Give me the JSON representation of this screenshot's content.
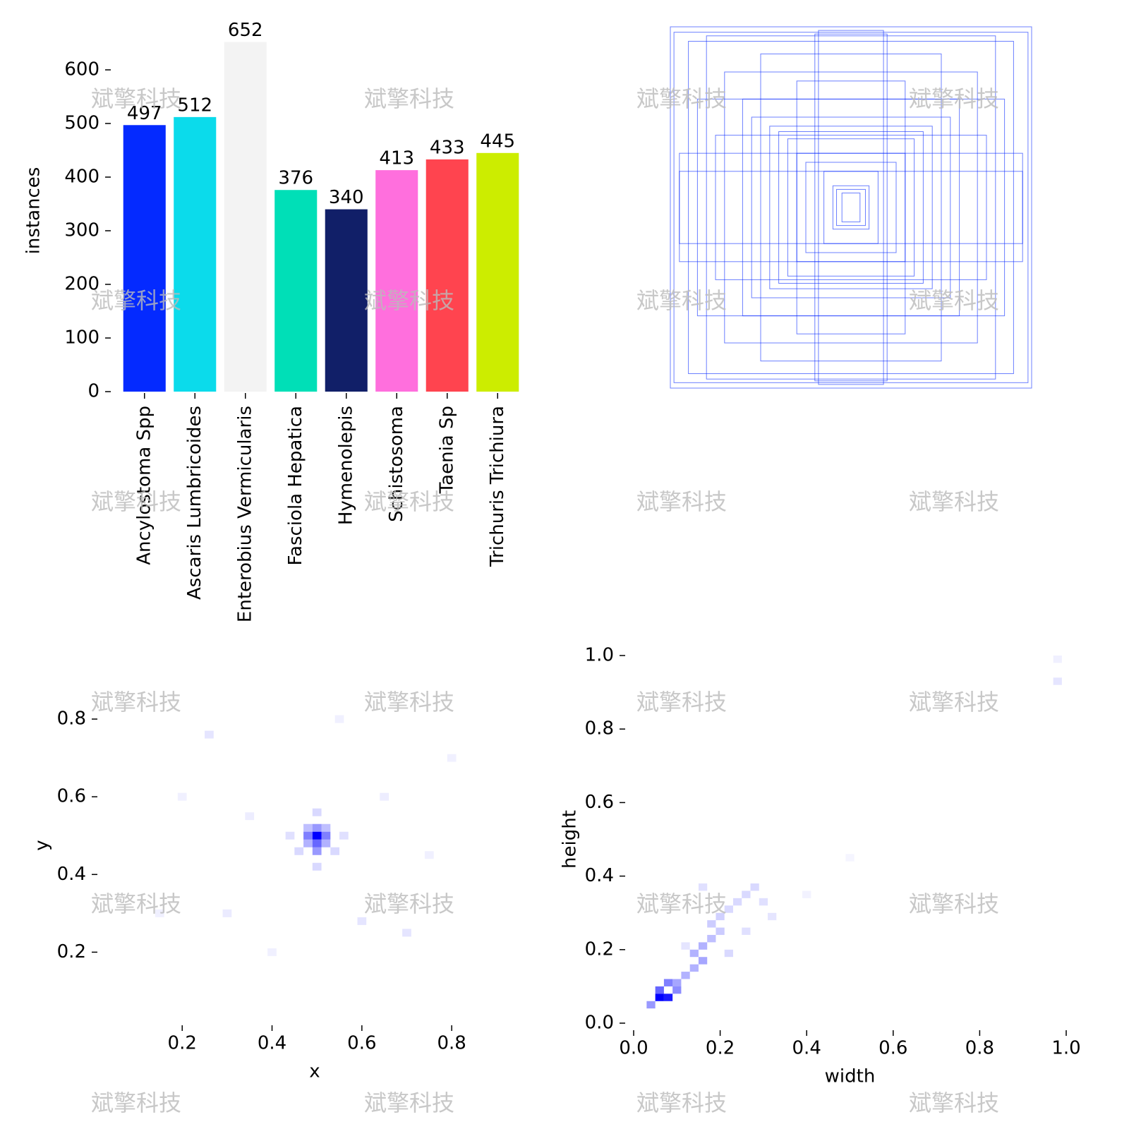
{
  "watermark": "斌擎科技",
  "chart_data": [
    {
      "type": "bar",
      "ylabel": "instances",
      "categories": [
        "Ancylostoma Spp",
        "Ascaris Lumbricoides",
        "Enterobius Vermicularis",
        "Fasciola Hepatica",
        "Hymenolepis",
        "Schistosoma",
        "Taenia Sp",
        "Trichuris Trichiura"
      ],
      "values": [
        497,
        512,
        652,
        376,
        340,
        413,
        433,
        445
      ],
      "colors": [
        "#042aff",
        "#0bdbeb",
        "#f3f3f3",
        "#00dfb7",
        "#111f68",
        "#ff6fdd",
        "#ff444f",
        "#cced00"
      ],
      "ylim": [
        0,
        675
      ],
      "yticks": [
        0,
        100,
        200,
        300,
        400,
        500,
        600
      ]
    },
    {
      "type": "boxes",
      "color": "#0a2cff",
      "boxes": [
        [
          1,
          1
        ],
        [
          0.98,
          0.97
        ],
        [
          0.9,
          0.92
        ],
        [
          0.8,
          0.95
        ],
        [
          0.2,
          0.96
        ],
        [
          0.18,
          0.98
        ],
        [
          0.95,
          0.2
        ],
        [
          0.95,
          0.3
        ],
        [
          0.6,
          0.6
        ],
        [
          0.45,
          0.45
        ],
        [
          0.4,
          0.42
        ],
        [
          0.35,
          0.38
        ],
        [
          0.3,
          0.3
        ],
        [
          0.25,
          0.25
        ],
        [
          0.15,
          0.2
        ],
        [
          0.1,
          0.12
        ],
        [
          0.08,
          0.1
        ],
        [
          0.05,
          0.08
        ],
        [
          0.7,
          0.75
        ],
        [
          0.55,
          0.5
        ],
        [
          0.85,
          0.6
        ],
        [
          0.5,
          0.85
        ],
        [
          0.75,
          0.4
        ],
        [
          0.3,
          0.7
        ]
      ]
    },
    {
      "type": "heatmap",
      "xlabel": "x",
      "ylabel": "y",
      "color": "#0000ff",
      "bin": 0.02,
      "xlim": [
        0.03,
        0.96
      ],
      "ylim": [
        0.03,
        0.92
      ],
      "xticks": [
        0.2,
        0.4,
        0.6,
        0.8
      ],
      "yticks": [
        0.2,
        0.4,
        0.6,
        0.8
      ],
      "cells": [
        [
          0.5,
          0.5,
          1
        ],
        [
          0.48,
          0.5,
          0.5
        ],
        [
          0.52,
          0.5,
          0.5
        ],
        [
          0.5,
          0.48,
          0.6
        ],
        [
          0.5,
          0.46,
          0.4
        ],
        [
          0.5,
          0.52,
          0.4
        ],
        [
          0.48,
          0.48,
          0.3
        ],
        [
          0.52,
          0.48,
          0.3
        ],
        [
          0.48,
          0.52,
          0.25
        ],
        [
          0.52,
          0.52,
          0.25
        ],
        [
          0.46,
          0.46,
          0.15
        ],
        [
          0.54,
          0.46,
          0.15
        ],
        [
          0.5,
          0.56,
          0.15
        ],
        [
          0.44,
          0.5,
          0.12
        ],
        [
          0.56,
          0.5,
          0.12
        ],
        [
          0.5,
          0.42,
          0.15
        ],
        [
          0.26,
          0.76,
          0.1
        ],
        [
          0.3,
          0.3,
          0.08
        ],
        [
          0.7,
          0.25,
          0.1
        ],
        [
          0.6,
          0.28,
          0.1
        ],
        [
          0.2,
          0.6,
          0.06
        ],
        [
          0.8,
          0.7,
          0.06
        ],
        [
          0.35,
          0.55,
          0.07
        ],
        [
          0.65,
          0.6,
          0.07
        ],
        [
          0.4,
          0.2,
          0.06
        ],
        [
          0.75,
          0.45,
          0.06
        ],
        [
          0.15,
          0.3,
          0.06
        ],
        [
          0.55,
          0.8,
          0.06
        ]
      ]
    },
    {
      "type": "heatmap",
      "xlabel": "width",
      "ylabel": "height",
      "color": "#0000ff",
      "bin": 0.02,
      "xlim": [
        0,
        1
      ],
      "ylim": [
        0,
        1
      ],
      "xticks": [
        {
          "value": 0,
          "label": "0.0"
        },
        0.2,
        0.4,
        0.6,
        0.8,
        {
          "value": 1,
          "label": "1.0"
        }
      ],
      "yticks": [
        {
          "value": 0,
          "label": "0.0"
        },
        0.2,
        0.4,
        0.6,
        0.8,
        {
          "value": 1,
          "label": "1.0"
        }
      ],
      "cells": [
        [
          0.06,
          0.07,
          1
        ],
        [
          0.08,
          0.07,
          0.9
        ],
        [
          0.06,
          0.09,
          0.6
        ],
        [
          0.08,
          0.11,
          0.5
        ],
        [
          0.1,
          0.09,
          0.45
        ],
        [
          0.1,
          0.11,
          0.35
        ],
        [
          0.12,
          0.13,
          0.3
        ],
        [
          0.14,
          0.15,
          0.3
        ],
        [
          0.16,
          0.17,
          0.35
        ],
        [
          0.14,
          0.19,
          0.3
        ],
        [
          0.16,
          0.21,
          0.3
        ],
        [
          0.18,
          0.23,
          0.25
        ],
        [
          0.2,
          0.25,
          0.2
        ],
        [
          0.18,
          0.27,
          0.2
        ],
        [
          0.2,
          0.29,
          0.18
        ],
        [
          0.22,
          0.31,
          0.15
        ],
        [
          0.24,
          0.33,
          0.15
        ],
        [
          0.26,
          0.35,
          0.15
        ],
        [
          0.28,
          0.37,
          0.15
        ],
        [
          0.3,
          0.33,
          0.12
        ],
        [
          0.16,
          0.37,
          0.12
        ],
        [
          0.22,
          0.19,
          0.15
        ],
        [
          0.26,
          0.25,
          0.12
        ],
        [
          0.12,
          0.21,
          0.1
        ],
        [
          0.32,
          0.29,
          0.1
        ],
        [
          0.04,
          0.05,
          0.4
        ],
        [
          0.4,
          0.35,
          0.05
        ],
        [
          0.5,
          0.45,
          0.04
        ],
        [
          0.98,
          0.93,
          0.1
        ],
        [
          0.98,
          0.99,
          0.06
        ]
      ]
    }
  ]
}
